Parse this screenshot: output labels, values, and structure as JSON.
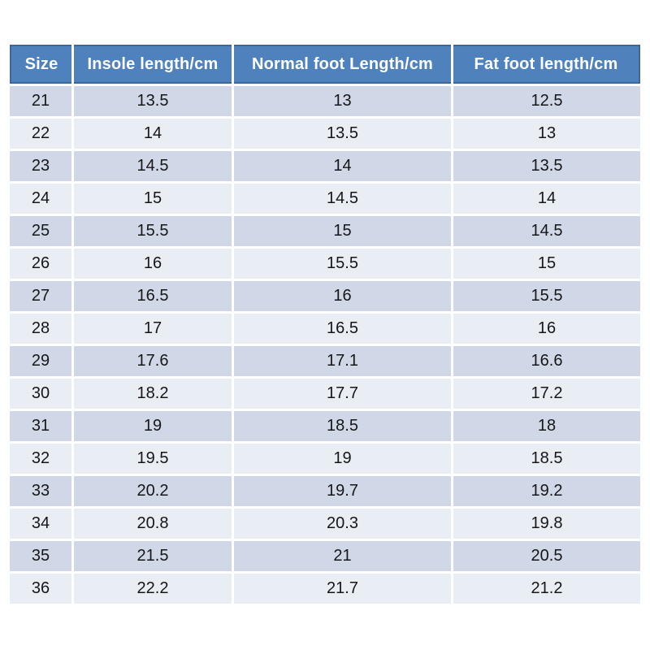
{
  "chart_data": {
    "type": "table",
    "title": "",
    "columns": [
      "Size",
      "Insole length/cm",
      "Normal foot Length/cm",
      "Fat foot length/cm"
    ],
    "rows": [
      [
        "21",
        "13.5",
        "13",
        "12.5"
      ],
      [
        "22",
        "14",
        "13.5",
        "13"
      ],
      [
        "23",
        "14.5",
        "14",
        "13.5"
      ],
      [
        "24",
        "15",
        "14.5",
        "14"
      ],
      [
        "25",
        "15.5",
        "15",
        "14.5"
      ],
      [
        "26",
        "16",
        "15.5",
        "15"
      ],
      [
        "27",
        "16.5",
        "16",
        "15.5"
      ],
      [
        "28",
        "17",
        "16.5",
        "16"
      ],
      [
        "29",
        "17.6",
        "17.1",
        "16.6"
      ],
      [
        "30",
        "18.2",
        "17.7",
        "17.2"
      ],
      [
        "31",
        "19",
        "18.5",
        "18"
      ],
      [
        "32",
        "19.5",
        "19",
        "18.5"
      ],
      [
        "33",
        "20.2",
        "19.7",
        "19.2"
      ],
      [
        "34",
        "20.8",
        "20.3",
        "19.8"
      ],
      [
        "35",
        "21.5",
        "21",
        "20.5"
      ],
      [
        "36",
        "22.2",
        "21.7",
        "21.2"
      ]
    ],
    "layout": {
      "banding": "alternating rows starting dark",
      "grid": "white gaps between cells",
      "header_style": "solid blue band with darker blue outline"
    }
  },
  "style": {
    "header_bg": "#4F81BD",
    "header_border": "#39679E",
    "header_text": "#FFFFFF",
    "row_dark_bg": "#D0D8E8",
    "row_light_bg": "#E9EDF4",
    "cell_text": "#161616",
    "page_bg": "#FFFFFF"
  }
}
